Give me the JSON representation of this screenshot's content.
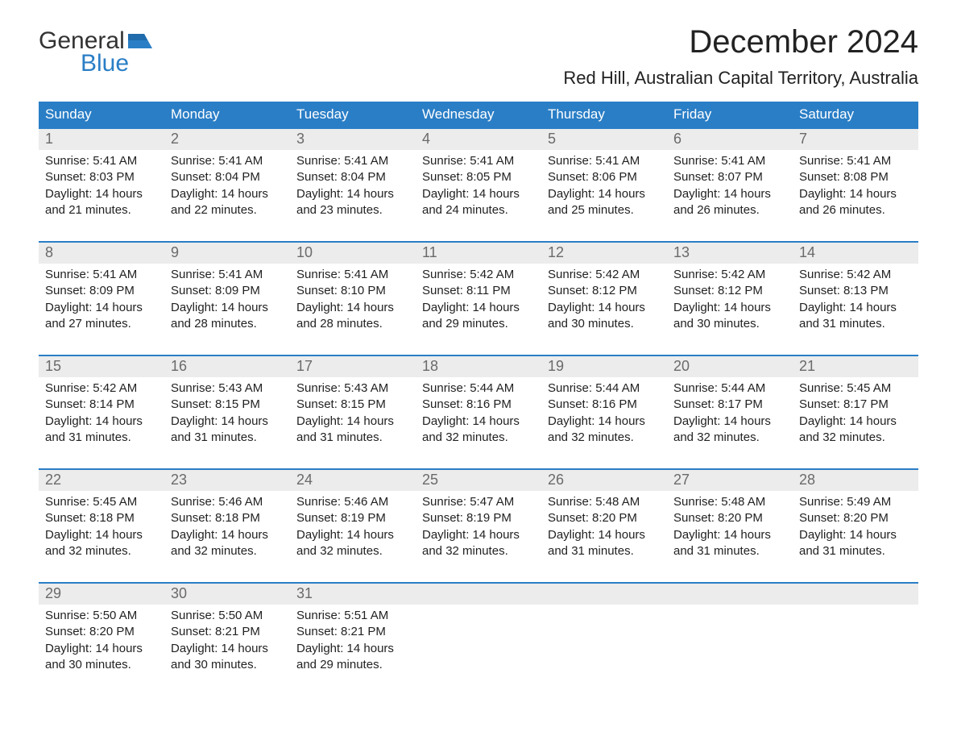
{
  "logo": {
    "word_a": "General",
    "word_b": "Blue"
  },
  "title": "December 2024",
  "subtitle": "Red Hill, Australian Capital Territory, Australia",
  "dayHeaders": [
    "Sunday",
    "Monday",
    "Tuesday",
    "Wednesday",
    "Thursday",
    "Friday",
    "Saturday"
  ],
  "colors": {
    "header_bg": "#2a7ec6",
    "week_rule": "#2a7ec6",
    "daynum_bg": "#ececec",
    "logo_blue": "#2a7ec6"
  },
  "weeks": [
    [
      {
        "n": "1",
        "sunrise": "5:41 AM",
        "sunset": "8:03 PM",
        "daylight": "14 hours and 21 minutes."
      },
      {
        "n": "2",
        "sunrise": "5:41 AM",
        "sunset": "8:04 PM",
        "daylight": "14 hours and 22 minutes."
      },
      {
        "n": "3",
        "sunrise": "5:41 AM",
        "sunset": "8:04 PM",
        "daylight": "14 hours and 23 minutes."
      },
      {
        "n": "4",
        "sunrise": "5:41 AM",
        "sunset": "8:05 PM",
        "daylight": "14 hours and 24 minutes."
      },
      {
        "n": "5",
        "sunrise": "5:41 AM",
        "sunset": "8:06 PM",
        "daylight": "14 hours and 25 minutes."
      },
      {
        "n": "6",
        "sunrise": "5:41 AM",
        "sunset": "8:07 PM",
        "daylight": "14 hours and 26 minutes."
      },
      {
        "n": "7",
        "sunrise": "5:41 AM",
        "sunset": "8:08 PM",
        "daylight": "14 hours and 26 minutes."
      }
    ],
    [
      {
        "n": "8",
        "sunrise": "5:41 AM",
        "sunset": "8:09 PM",
        "daylight": "14 hours and 27 minutes."
      },
      {
        "n": "9",
        "sunrise": "5:41 AM",
        "sunset": "8:09 PM",
        "daylight": "14 hours and 28 minutes."
      },
      {
        "n": "10",
        "sunrise": "5:41 AM",
        "sunset": "8:10 PM",
        "daylight": "14 hours and 28 minutes."
      },
      {
        "n": "11",
        "sunrise": "5:42 AM",
        "sunset": "8:11 PM",
        "daylight": "14 hours and 29 minutes."
      },
      {
        "n": "12",
        "sunrise": "5:42 AM",
        "sunset": "8:12 PM",
        "daylight": "14 hours and 30 minutes."
      },
      {
        "n": "13",
        "sunrise": "5:42 AM",
        "sunset": "8:12 PM",
        "daylight": "14 hours and 30 minutes."
      },
      {
        "n": "14",
        "sunrise": "5:42 AM",
        "sunset": "8:13 PM",
        "daylight": "14 hours and 31 minutes."
      }
    ],
    [
      {
        "n": "15",
        "sunrise": "5:42 AM",
        "sunset": "8:14 PM",
        "daylight": "14 hours and 31 minutes."
      },
      {
        "n": "16",
        "sunrise": "5:43 AM",
        "sunset": "8:15 PM",
        "daylight": "14 hours and 31 minutes."
      },
      {
        "n": "17",
        "sunrise": "5:43 AM",
        "sunset": "8:15 PM",
        "daylight": "14 hours and 31 minutes."
      },
      {
        "n": "18",
        "sunrise": "5:44 AM",
        "sunset": "8:16 PM",
        "daylight": "14 hours and 32 minutes."
      },
      {
        "n": "19",
        "sunrise": "5:44 AM",
        "sunset": "8:16 PM",
        "daylight": "14 hours and 32 minutes."
      },
      {
        "n": "20",
        "sunrise": "5:44 AM",
        "sunset": "8:17 PM",
        "daylight": "14 hours and 32 minutes."
      },
      {
        "n": "21",
        "sunrise": "5:45 AM",
        "sunset": "8:17 PM",
        "daylight": "14 hours and 32 minutes."
      }
    ],
    [
      {
        "n": "22",
        "sunrise": "5:45 AM",
        "sunset": "8:18 PM",
        "daylight": "14 hours and 32 minutes."
      },
      {
        "n": "23",
        "sunrise": "5:46 AM",
        "sunset": "8:18 PM",
        "daylight": "14 hours and 32 minutes."
      },
      {
        "n": "24",
        "sunrise": "5:46 AM",
        "sunset": "8:19 PM",
        "daylight": "14 hours and 32 minutes."
      },
      {
        "n": "25",
        "sunrise": "5:47 AM",
        "sunset": "8:19 PM",
        "daylight": "14 hours and 32 minutes."
      },
      {
        "n": "26",
        "sunrise": "5:48 AM",
        "sunset": "8:20 PM",
        "daylight": "14 hours and 31 minutes."
      },
      {
        "n": "27",
        "sunrise": "5:48 AM",
        "sunset": "8:20 PM",
        "daylight": "14 hours and 31 minutes."
      },
      {
        "n": "28",
        "sunrise": "5:49 AM",
        "sunset": "8:20 PM",
        "daylight": "14 hours and 31 minutes."
      }
    ],
    [
      {
        "n": "29",
        "sunrise": "5:50 AM",
        "sunset": "8:20 PM",
        "daylight": "14 hours and 30 minutes."
      },
      {
        "n": "30",
        "sunrise": "5:50 AM",
        "sunset": "8:21 PM",
        "daylight": "14 hours and 30 minutes."
      },
      {
        "n": "31",
        "sunrise": "5:51 AM",
        "sunset": "8:21 PM",
        "daylight": "14 hours and 29 minutes."
      },
      null,
      null,
      null,
      null
    ]
  ],
  "labels": {
    "sunrise": "Sunrise: ",
    "sunset": "Sunset: ",
    "daylight": "Daylight: "
  }
}
